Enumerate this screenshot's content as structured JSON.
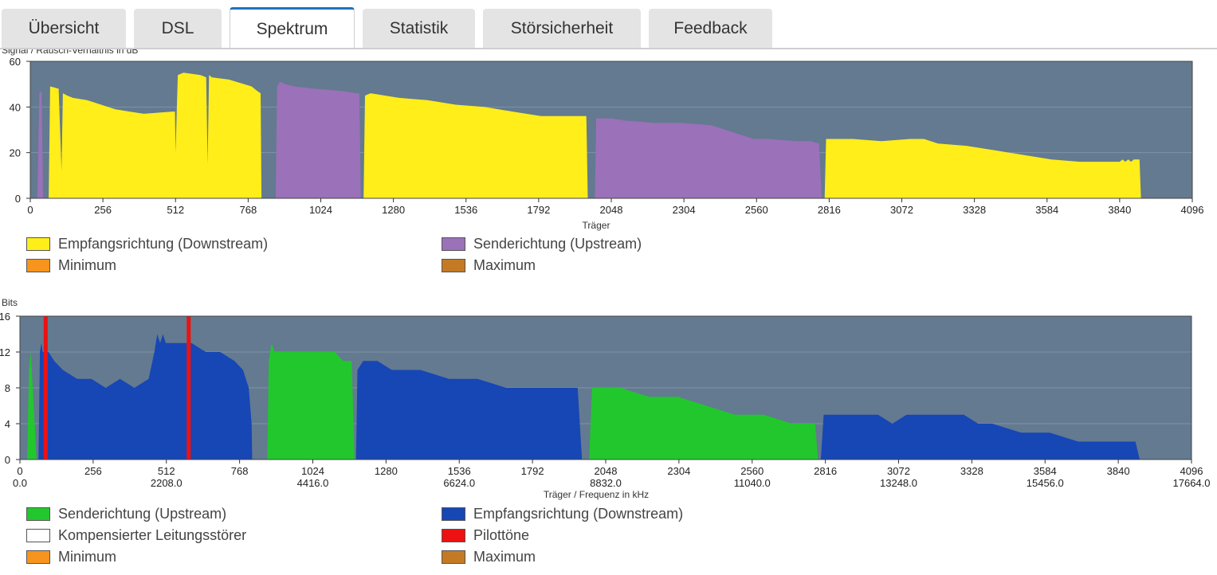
{
  "tabs": [
    {
      "label": "Übersicht"
    },
    {
      "label": "DSL"
    },
    {
      "label": "Spektrum"
    },
    {
      "label": "Statistik"
    },
    {
      "label": "Störsicherheit"
    },
    {
      "label": "Feedback"
    }
  ],
  "colors": {
    "plot_bg": "#637a90",
    "grid": "#8093a7",
    "downstream_snr": "#ffee1a",
    "upstream_snr": "#9b71b9",
    "upstream_bits": "#22c72e",
    "downstream_bits": "#1746b5",
    "pilot": "#ee1111",
    "minimum": "#f7941d",
    "maximum": "#c47a25",
    "compensated": "#ffffff"
  },
  "snr_chart": {
    "ylabel": "Signal / Rausch-Verhältnis in dB",
    "xlabel": "Träger",
    "legend": [
      {
        "label": "Empfangsrichtung (Downstream)",
        "color_key": "downstream_snr"
      },
      {
        "label": "Senderichtung (Upstream)",
        "color_key": "upstream_snr"
      },
      {
        "label": "Minimum",
        "color_key": "minimum"
      },
      {
        "label": "Maximum",
        "color_key": "maximum"
      }
    ]
  },
  "bits_chart": {
    "ylabel": "Bits",
    "xlabel": "Träger / Frequenz in kHz",
    "freq_ticks": [
      "0.0",
      "2208.0",
      "4416.0",
      "6624.0",
      "8832.0",
      "11040.0",
      "13248.0",
      "15456.0",
      "17664.0"
    ],
    "legend": [
      {
        "label": "Senderichtung (Upstream)",
        "color_key": "upstream_bits"
      },
      {
        "label": "Empfangsrichtung (Downstream)",
        "color_key": "downstream_bits"
      },
      {
        "label": "Kompensierter Leitungsstörer",
        "color_key": "compensated"
      },
      {
        "label": "Pilottöne",
        "color_key": "pilot"
      },
      {
        "label": "Minimum",
        "color_key": "minimum"
      },
      {
        "label": "Maximum",
        "color_key": "maximum"
      }
    ]
  },
  "chart_data": [
    {
      "type": "area",
      "ylabel": "Signal / Rausch-Verhältnis in dB",
      "xlabel": "Träger",
      "xlim": [
        0,
        4096
      ],
      "ylim": [
        0,
        60
      ],
      "x_ticks": [
        0,
        256,
        512,
        768,
        1024,
        1280,
        1536,
        1792,
        2048,
        2304,
        2560,
        2816,
        3072,
        3328,
        3584,
        3840,
        4096
      ],
      "y_ticks": [
        0,
        20,
        40,
        60
      ],
      "grid": true,
      "series": [
        {
          "name": "Senderichtung (Upstream)",
          "color_key": "upstream_snr",
          "segments": [
            {
              "x": [
                25,
                32,
                40,
                45
              ],
              "y": [
                0,
                46,
                47,
                0
              ]
            },
            {
              "x": [
                865,
                870,
                880,
                900,
                930,
                1000,
                1100,
                1150,
                1160,
                1165
              ],
              "y": [
                0,
                49,
                51,
                50,
                49,
                48,
                47,
                46,
                46,
                0
              ]
            },
            {
              "x": [
                1990,
                1995,
                2050,
                2100,
                2200,
                2300,
                2400,
                2450,
                2500,
                2550,
                2600,
                2700,
                2750,
                2780,
                2790
              ],
              "y": [
                0,
                35,
                35,
                34,
                33,
                33,
                32,
                30,
                28,
                26,
                26,
                25,
                25,
                24,
                0
              ]
            }
          ]
        },
        {
          "name": "Empfangsrichtung (Downstream)",
          "color_key": "downstream_snr",
          "segments": [
            {
              "x": [
                65,
                70,
                100,
                110,
                115,
                130,
                150,
                200,
                250,
                300,
                350,
                400,
                500,
                510,
                512,
                520,
                540,
                600,
                620,
                625,
                630,
                640,
                700,
                780,
                800,
                812,
                815
              ],
              "y": [
                0,
                49,
                48,
                12,
                46,
                45,
                44,
                43,
                41,
                39,
                38,
                37,
                38,
                38,
                20,
                54,
                55,
                54,
                53,
                15,
                54,
                53,
                52,
                49,
                47,
                46,
                0
              ]
            },
            {
              "x": [
                1175,
                1180,
                1200,
                1250,
                1300,
                1400,
                1500,
                1600,
                1700,
                1800,
                1900,
                1960,
                1965
              ],
              "y": [
                0,
                45,
                46,
                45,
                44,
                43,
                41,
                40,
                38,
                36,
                36,
                36,
                0
              ]
            },
            {
              "x": [
                2800,
                2805,
                2900,
                3000,
                3100,
                3150,
                3200,
                3300,
                3400,
                3500,
                3600,
                3700,
                3800,
                3840,
                3850,
                3860,
                3870,
                3880,
                3890,
                3900,
                3910,
                3915
              ],
              "y": [
                0,
                26,
                26,
                25,
                26,
                26,
                24,
                23,
                21,
                19,
                17,
                16,
                16,
                16,
                17,
                16,
                17,
                16,
                17,
                17,
                17,
                0
              ]
            }
          ]
        }
      ]
    },
    {
      "type": "area",
      "ylabel": "Bits",
      "xlabel": "Träger / Frequenz in kHz",
      "xlim": [
        0,
        4096
      ],
      "ylim": [
        0,
        16
      ],
      "x_ticks": [
        0,
        256,
        512,
        768,
        1024,
        1280,
        1536,
        1792,
        2048,
        2304,
        2560,
        2816,
        3072,
        3328,
        3584,
        3840,
        4096
      ],
      "y_ticks": [
        0,
        4,
        8,
        12,
        16
      ],
      "grid": true,
      "series": [
        {
          "name": "Senderichtung (Upstream)",
          "color_key": "upstream_bits",
          "segments": [
            {
              "x": [
                25,
                32,
                38,
                45,
                58
              ],
              "y": [
                0,
                10,
                12,
                8,
                0
              ]
            },
            {
              "x": [
                865,
                870,
                880,
                890,
                900,
                920,
                1000,
                1100,
                1130,
                1160,
                1170
              ],
              "y": [
                0,
                11,
                13,
                12,
                12,
                12,
                12,
                12,
                11,
                11,
                0
              ]
            },
            {
              "x": [
                1990,
                2000,
                2100,
                2200,
                2300,
                2400,
                2500,
                2600,
                2700,
                2750,
                2780,
                2790
              ],
              "y": [
                0,
                8,
                8,
                7,
                7,
                6,
                5,
                5,
                4,
                4,
                4,
                0
              ]
            }
          ]
        },
        {
          "name": "Empfangsrichtung (Downstream)",
          "color_key": "downstream_bits",
          "segments": [
            {
              "x": [
                65,
                70,
                75,
                80,
                90,
                100,
                120,
                150,
                200,
                250,
                300,
                350,
                400,
                450,
                470,
                480,
                490,
                500,
                510,
                520,
                530,
                560,
                600,
                650,
                700,
                750,
                780,
                800,
                810,
                812
              ],
              "y": [
                0,
                12,
                13,
                12,
                12,
                12,
                11,
                10,
                9,
                9,
                8,
                9,
                8,
                9,
                12,
                14,
                13,
                14,
                13,
                13,
                13,
                13,
                13,
                12,
                12,
                11,
                10,
                8,
                4,
                0
              ]
            },
            {
              "x": [
                1175,
                1180,
                1200,
                1250,
                1300,
                1400,
                1500,
                1600,
                1700,
                1800,
                1900,
                1950,
                1965
              ],
              "y": [
                0,
                10,
                11,
                11,
                10,
                10,
                9,
                9,
                8,
                8,
                8,
                8,
                0
              ]
            },
            {
              "x": [
                2800,
                2810,
                2900,
                3000,
                3050,
                3100,
                3200,
                3300,
                3350,
                3400,
                3500,
                3600,
                3700,
                3800,
                3900,
                3915
              ],
              "y": [
                0,
                5,
                5,
                5,
                4,
                5,
                5,
                5,
                4,
                4,
                3,
                3,
                2,
                2,
                2,
                0
              ]
            }
          ]
        }
      ],
      "pilot_tones": [
        90,
        590
      ]
    }
  ]
}
